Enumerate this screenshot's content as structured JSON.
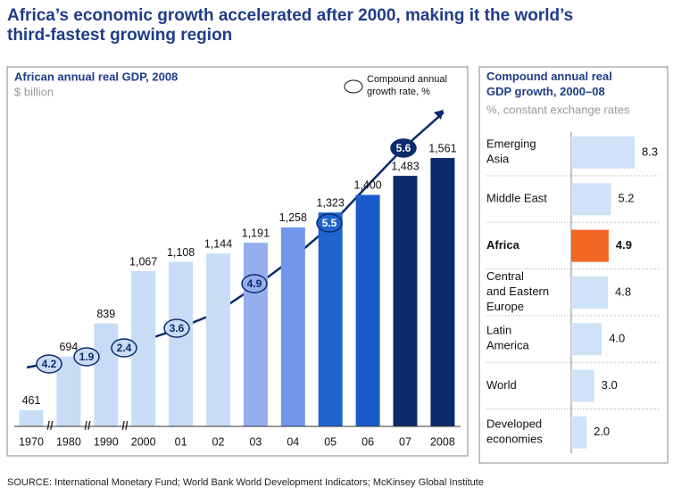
{
  "title": "Africa’s economic growth accelerated after 2000, making it the world’s\nthird-fastest growing region",
  "source": "SOURCE: International Monetary Fund; World Bank World Development Indicators; McKinsey Global Institute",
  "chart_data": [
    {
      "type": "bar",
      "title": "African annual real GDP, 2008",
      "subtitle": "$ billion",
      "categories": [
        "1970",
        "1980",
        "1990",
        "2000",
        "01",
        "02",
        "03",
        "04",
        "05",
        "06",
        "07",
        "2008"
      ],
      "values": [
        461,
        694,
        839,
        1067,
        1108,
        1144,
        1191,
        1258,
        1323,
        1400,
        1483,
        1561
      ],
      "value_labels": [
        "461",
        "694",
        "839",
        "1,067",
        "1,108",
        "1,144",
        "1,191",
        "1,258",
        "1,323",
        "1,400",
        "1,483",
        "1,561"
      ],
      "colors": [
        "#c8dcf5",
        "#c8dcf5",
        "#c8dcf5",
        "#c8dcf5",
        "#c8dcf5",
        "#c8dcf5",
        "#94aeee",
        "#7196ea",
        "#1f63d0",
        "#1a5bc9",
        "#0b2a6b",
        "#0b2a6b"
      ],
      "growth_legend": "Compound annual\ngrowth rate, %",
      "growth_rates": [
        4.2,
        1.9,
        2.4,
        3.6,
        4.9,
        5.5,
        5.6
      ],
      "growth_colors": [
        "#c8dcf5",
        "#c8dcf5",
        "#c8dcf5",
        "#c8dcf5",
        "#94aeee",
        "#1f63d0",
        "#0b2a6b"
      ]
    },
    {
      "type": "hbar",
      "title": "Compound annual real\nGDP growth, 2000–08",
      "subtitle": "%, constant exchange rates",
      "categories": [
        "Emerging\nAsia",
        "Middle East",
        "Africa",
        "Central\nand Eastern\nEurope",
        "Latin\nAmerica",
        "World",
        "Developed\neconomies"
      ],
      "values": [
        8.3,
        5.2,
        4.9,
        4.8,
        4.0,
        3.0,
        2.0
      ],
      "value_labels": [
        "8.3",
        "5.2",
        "4.9",
        "4.8",
        "4.0",
        "3.0",
        "2.0"
      ],
      "colors": [
        "#cfe2f7",
        "#cfe2f7",
        "#f26522",
        "#cfe2f7",
        "#cfe2f7",
        "#cfe2f7",
        "#cfe2f7"
      ]
    }
  ]
}
